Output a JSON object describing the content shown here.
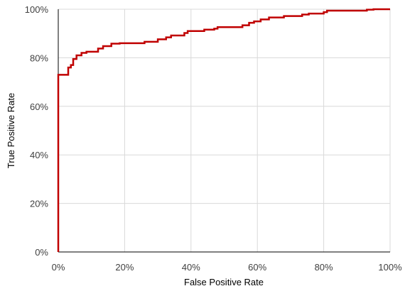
{
  "chart_data": {
    "type": "line",
    "xlabel": "False Positive Rate",
    "ylabel": "True Positive Rate",
    "xlim": [
      0,
      1
    ],
    "ylim": [
      0,
      1
    ],
    "x_ticks": [
      0,
      0.2,
      0.4,
      0.6,
      0.8,
      1.0
    ],
    "y_ticks": [
      0,
      0.2,
      0.4,
      0.6,
      0.8,
      1.0
    ],
    "x_tick_labels": [
      "0%",
      "20%",
      "40%",
      "60%",
      "80%",
      "100%"
    ],
    "y_tick_labels": [
      "0%",
      "20%",
      "40%",
      "60%",
      "80%",
      "100%"
    ],
    "grid": "vertical and horizontal major gridlines",
    "legend": "none",
    "series": [
      {
        "color": "#c00000",
        "style": "step",
        "points": [
          [
            0.0,
            0.0
          ],
          [
            0.0,
            0.73
          ],
          [
            0.03,
            0.73
          ],
          [
            0.03,
            0.76
          ],
          [
            0.038,
            0.76
          ],
          [
            0.038,
            0.77
          ],
          [
            0.045,
            0.77
          ],
          [
            0.045,
            0.795
          ],
          [
            0.055,
            0.795
          ],
          [
            0.055,
            0.81
          ],
          [
            0.07,
            0.81
          ],
          [
            0.07,
            0.82
          ],
          [
            0.085,
            0.82
          ],
          [
            0.085,
            0.825
          ],
          [
            0.12,
            0.825
          ],
          [
            0.12,
            0.838
          ],
          [
            0.135,
            0.838
          ],
          [
            0.135,
            0.848
          ],
          [
            0.16,
            0.848
          ],
          [
            0.16,
            0.858
          ],
          [
            0.185,
            0.858
          ],
          [
            0.185,
            0.86
          ],
          [
            0.26,
            0.86
          ],
          [
            0.26,
            0.866
          ],
          [
            0.3,
            0.866
          ],
          [
            0.3,
            0.876
          ],
          [
            0.325,
            0.876
          ],
          [
            0.325,
            0.884
          ],
          [
            0.34,
            0.884
          ],
          [
            0.34,
            0.892
          ],
          [
            0.38,
            0.892
          ],
          [
            0.38,
            0.902
          ],
          [
            0.39,
            0.902
          ],
          [
            0.39,
            0.91
          ],
          [
            0.44,
            0.91
          ],
          [
            0.44,
            0.916
          ],
          [
            0.47,
            0.916
          ],
          [
            0.47,
            0.92
          ],
          [
            0.48,
            0.92
          ],
          [
            0.48,
            0.926
          ],
          [
            0.555,
            0.926
          ],
          [
            0.555,
            0.934
          ],
          [
            0.575,
            0.934
          ],
          [
            0.575,
            0.944
          ],
          [
            0.59,
            0.944
          ],
          [
            0.59,
            0.95
          ],
          [
            0.61,
            0.95
          ],
          [
            0.61,
            0.958
          ],
          [
            0.635,
            0.958
          ],
          [
            0.635,
            0.966
          ],
          [
            0.68,
            0.966
          ],
          [
            0.68,
            0.972
          ],
          [
            0.735,
            0.972
          ],
          [
            0.735,
            0.978
          ],
          [
            0.755,
            0.978
          ],
          [
            0.755,
            0.982
          ],
          [
            0.8,
            0.982
          ],
          [
            0.8,
            0.988
          ],
          [
            0.81,
            0.988
          ],
          [
            0.81,
            0.994
          ],
          [
            0.93,
            0.994
          ],
          [
            0.93,
            0.998
          ],
          [
            0.95,
            0.998
          ],
          [
            0.95,
            1.0
          ],
          [
            1.0,
            1.0
          ]
        ]
      }
    ]
  }
}
